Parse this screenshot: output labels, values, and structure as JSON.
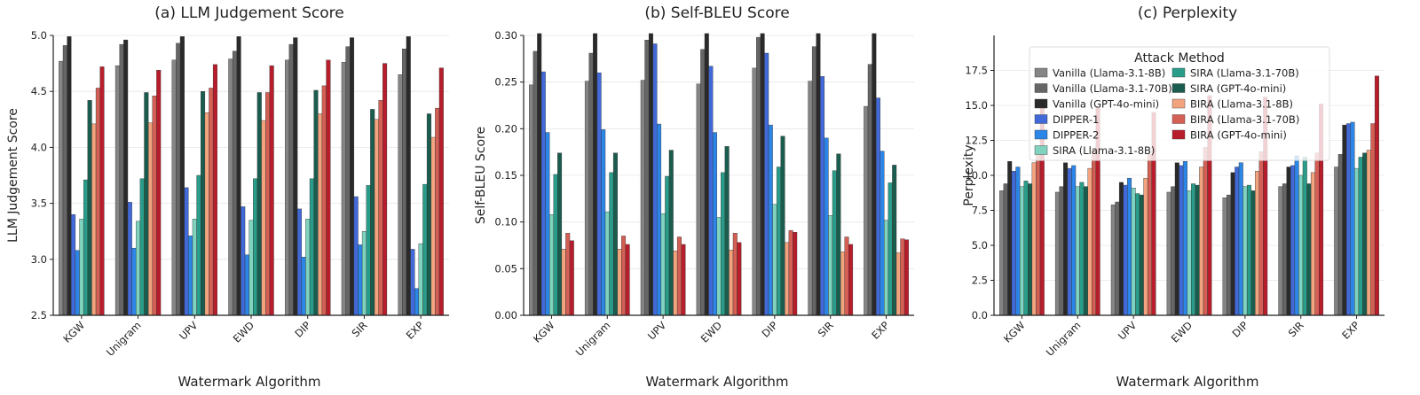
{
  "figure": {
    "series_names": [
      "Vanilla (Llama-3.1-8B)",
      "Vanilla (Llama-3.1-70B)",
      "Vanilla (GPT-4o-mini)",
      "DIPPER-1",
      "DIPPER-2",
      "SIRA (Llama-3.1-8B)",
      "SIRA (Llama-3.1-70B)",
      "SIRA (GPT-4o-mini)",
      "BIRA (Llama-3.1-8B)",
      "BIRA (Llama-3.1-70B)",
      "BIRA (GPT-4o-mini)"
    ],
    "series_colors": [
      "#858585",
      "#666666",
      "#2a2a2a",
      "#4169d8",
      "#2b86e8",
      "#7fd3bf",
      "#2a9d8a",
      "#1a5c4e",
      "#f2a47e",
      "#d45f55",
      "#b81d2c"
    ]
  },
  "chart_data": [
    {
      "type": "bar",
      "title": "(a) LLM Judgement Score",
      "xlabel": "Watermark Algorithm",
      "ylabel": "LLM Judgement Score",
      "ylim": [
        2.5,
        5.0
      ],
      "yticks": [
        2.5,
        3.0,
        3.5,
        4.0,
        4.5,
        5.0
      ],
      "ytick_labels": [
        "2.5",
        "3.0",
        "3.5",
        "4.0",
        "4.5",
        "5.0"
      ],
      "grid": true,
      "legend": null,
      "categories": [
        "KGW",
        "Unigram",
        "UPV",
        "EWD",
        "DIP",
        "SIR",
        "EXP"
      ],
      "series": [
        {
          "name": "Vanilla (Llama-3.1-8B)",
          "values": [
            4.77,
            4.73,
            4.78,
            4.79,
            4.78,
            4.76,
            4.65
          ]
        },
        {
          "name": "Vanilla (Llama-3.1-70B)",
          "values": [
            4.91,
            4.92,
            4.93,
            4.86,
            4.92,
            4.9,
            4.88
          ]
        },
        {
          "name": "Vanilla (GPT-4o-mini)",
          "values": [
            4.99,
            4.96,
            4.99,
            4.99,
            4.98,
            4.98,
            4.99
          ]
        },
        {
          "name": "DIPPER-1",
          "values": [
            3.4,
            3.51,
            3.64,
            3.47,
            3.45,
            3.56,
            3.09
          ]
        },
        {
          "name": "DIPPER-2",
          "values": [
            3.08,
            3.1,
            3.21,
            3.04,
            3.02,
            3.13,
            2.74
          ]
        },
        {
          "name": "SIRA (Llama-3.1-8B)",
          "values": [
            3.36,
            3.34,
            3.36,
            3.35,
            3.36,
            3.25,
            3.14
          ]
        },
        {
          "name": "SIRA (Llama-3.1-70B)",
          "values": [
            3.71,
            3.72,
            3.75,
            3.72,
            3.72,
            3.66,
            3.67
          ]
        },
        {
          "name": "SIRA (GPT-4o-mini)",
          "values": [
            4.42,
            4.49,
            4.5,
            4.49,
            4.51,
            4.34,
            4.3
          ]
        },
        {
          "name": "BIRA (Llama-3.1-8B)",
          "values": [
            4.21,
            4.22,
            4.31,
            4.24,
            4.3,
            4.25,
            4.09
          ]
        },
        {
          "name": "BIRA (Llama-3.1-70B)",
          "values": [
            4.53,
            4.46,
            4.53,
            4.49,
            4.55,
            4.42,
            4.35
          ]
        },
        {
          "name": "BIRA (GPT-4o-mini)",
          "values": [
            4.72,
            4.69,
            4.74,
            4.73,
            4.78,
            4.75,
            4.71
          ]
        }
      ]
    },
    {
      "type": "bar",
      "title": "(b) Self-BLEU Score",
      "xlabel": "Watermark Algorithm",
      "ylabel": "Self-BLEU Score",
      "ylim": [
        0.0,
        0.3
      ],
      "yticks": [
        0.0,
        0.05,
        0.1,
        0.15,
        0.2,
        0.25,
        0.3
      ],
      "ytick_labels": [
        "0.00",
        "0.05",
        "0.10",
        "0.15",
        "0.20",
        "0.25",
        "0.30"
      ],
      "grid": true,
      "legend": null,
      "categories": [
        "KGW",
        "Unigram",
        "UPV",
        "EWD",
        "DIP",
        "SIR",
        "EXP"
      ],
      "series": [
        {
          "name": "Vanilla (Llama-3.1-8B)",
          "values": [
            0.247,
            0.251,
            0.252,
            0.248,
            0.265,
            0.251,
            0.224
          ]
        },
        {
          "name": "Vanilla (Llama-3.1-70B)",
          "values": [
            0.283,
            0.281,
            0.295,
            0.285,
            0.298,
            0.288,
            0.269
          ]
        },
        {
          "name": "Vanilla (GPT-4o-mini)",
          "values": [
            0.302,
            0.302,
            0.302,
            0.302,
            0.302,
            0.302,
            0.302
          ]
        },
        {
          "name": "DIPPER-1",
          "values": [
            0.261,
            0.26,
            0.291,
            0.267,
            0.281,
            0.256,
            0.233
          ]
        },
        {
          "name": "DIPPER-2",
          "values": [
            0.196,
            0.199,
            0.205,
            0.196,
            0.204,
            0.19,
            0.176
          ]
        },
        {
          "name": "SIRA (Llama-3.1-8B)",
          "values": [
            0.108,
            0.111,
            0.109,
            0.105,
            0.119,
            0.107,
            0.102
          ]
        },
        {
          "name": "SIRA (Llama-3.1-70B)",
          "values": [
            0.151,
            0.153,
            0.149,
            0.153,
            0.159,
            0.155,
            0.142
          ]
        },
        {
          "name": "SIRA (GPT-4o-mini)",
          "values": [
            0.174,
            0.174,
            0.177,
            0.181,
            0.192,
            0.173,
            0.161
          ]
        },
        {
          "name": "BIRA (Llama-3.1-8B)",
          "values": [
            0.071,
            0.071,
            0.069,
            0.07,
            0.078,
            0.068,
            0.067
          ]
        },
        {
          "name": "BIRA (Llama-3.1-70B)",
          "values": [
            0.088,
            0.085,
            0.084,
            0.088,
            0.091,
            0.084,
            0.082
          ]
        },
        {
          "name": "BIRA (GPT-4o-mini)",
          "values": [
            0.08,
            0.076,
            0.076,
            0.078,
            0.089,
            0.076,
            0.081
          ]
        }
      ]
    },
    {
      "type": "bar",
      "title": "(c) Perplexity",
      "xlabel": "",
      "ylabel": "Perplexity",
      "ylim": [
        0.0,
        20.0
      ],
      "yticks": [
        0.0,
        2.5,
        5.0,
        7.5,
        10.0,
        12.5,
        15.0,
        17.5
      ],
      "ytick_labels": [
        "0.0",
        "2.5",
        "5.0",
        "7.5",
        "10.0",
        "12.5",
        "15.0",
        "17.5"
      ],
      "grid": true,
      "legend": "top-left",
      "legend_title": "Attack Method",
      "categories": [
        "KGW",
        "Unigram",
        "UPV",
        "EWD",
        "DIP",
        "SIR",
        "EXP"
      ],
      "series": [
        {
          "name": "Vanilla (Llama-3.1-8B)",
          "values": [
            8.9,
            8.8,
            7.9,
            8.8,
            8.4,
            9.2,
            10.6
          ]
        },
        {
          "name": "Vanilla (Llama-3.1-70B)",
          "values": [
            9.4,
            9.2,
            8.1,
            9.2,
            8.6,
            9.4,
            11.5
          ]
        },
        {
          "name": "Vanilla (GPT-4o-mini)",
          "values": [
            11.0,
            10.9,
            9.5,
            10.9,
            10.2,
            10.6,
            13.6
          ]
        },
        {
          "name": "DIPPER-1",
          "values": [
            10.3,
            10.5,
            9.3,
            10.7,
            10.6,
            10.7,
            13.7
          ]
        },
        {
          "name": "DIPPER-2",
          "values": [
            10.6,
            10.7,
            9.8,
            11.0,
            10.9,
            11.4,
            13.8
          ]
        },
        {
          "name": "SIRA (Llama-3.1-8B)",
          "values": [
            9.2,
            9.2,
            9.1,
            8.9,
            9.2,
            10.0,
            10.5
          ]
        },
        {
          "name": "SIRA (Llama-3.1-70B)",
          "values": [
            9.6,
            9.5,
            8.7,
            9.4,
            9.3,
            11.3,
            11.3
          ]
        },
        {
          "name": "SIRA (GPT-4o-mini)",
          "values": [
            9.4,
            9.2,
            8.6,
            9.3,
            8.9,
            9.4,
            11.6
          ]
        },
        {
          "name": "BIRA (Llama-3.1-8B)",
          "values": [
            10.9,
            10.5,
            9.8,
            10.6,
            10.3,
            10.2,
            11.8
          ]
        },
        {
          "name": "BIRA (Llama-3.1-70B)",
          "values": [
            12.0,
            11.9,
            11.5,
            12.0,
            11.7,
            11.6,
            13.7
          ]
        },
        {
          "name": "BIRA (GPT-4o-mini)",
          "values": [
            15.4,
            14.9,
            14.5,
            15.7,
            15.6,
            15.1,
            17.1
          ]
        }
      ]
    }
  ]
}
